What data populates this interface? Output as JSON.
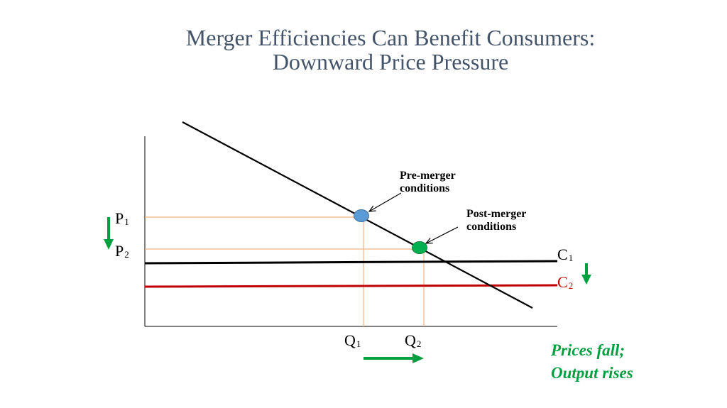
{
  "title": {
    "line1": "Merger Efficiencies Can Benefit Consumers:",
    "line2": "Downward Price Pressure"
  },
  "labels": {
    "p": "P",
    "p1_sub": "1",
    "p2_sub": "2",
    "q": "Q",
    "q1_sub": "1",
    "q2_sub": "2",
    "c": "C",
    "c1_sub": "1",
    "c2_sub": "2"
  },
  "callouts": {
    "pre_line1": "Pre-merger",
    "pre_line2": "conditions",
    "post_line1": "Post-merger",
    "post_line2": "conditions"
  },
  "conclusion": {
    "line1": "Prices fall;",
    "line2": "Output rises"
  },
  "colors": {
    "title": "#44546a",
    "cost_c1": "#000000",
    "cost_c2": "#c00000",
    "guide_lines": "#f4b183",
    "pre_point": "#5b9bd5",
    "post_point": "#00b050",
    "arrows": "#00a040",
    "conclusion_text": "#00a040"
  }
}
